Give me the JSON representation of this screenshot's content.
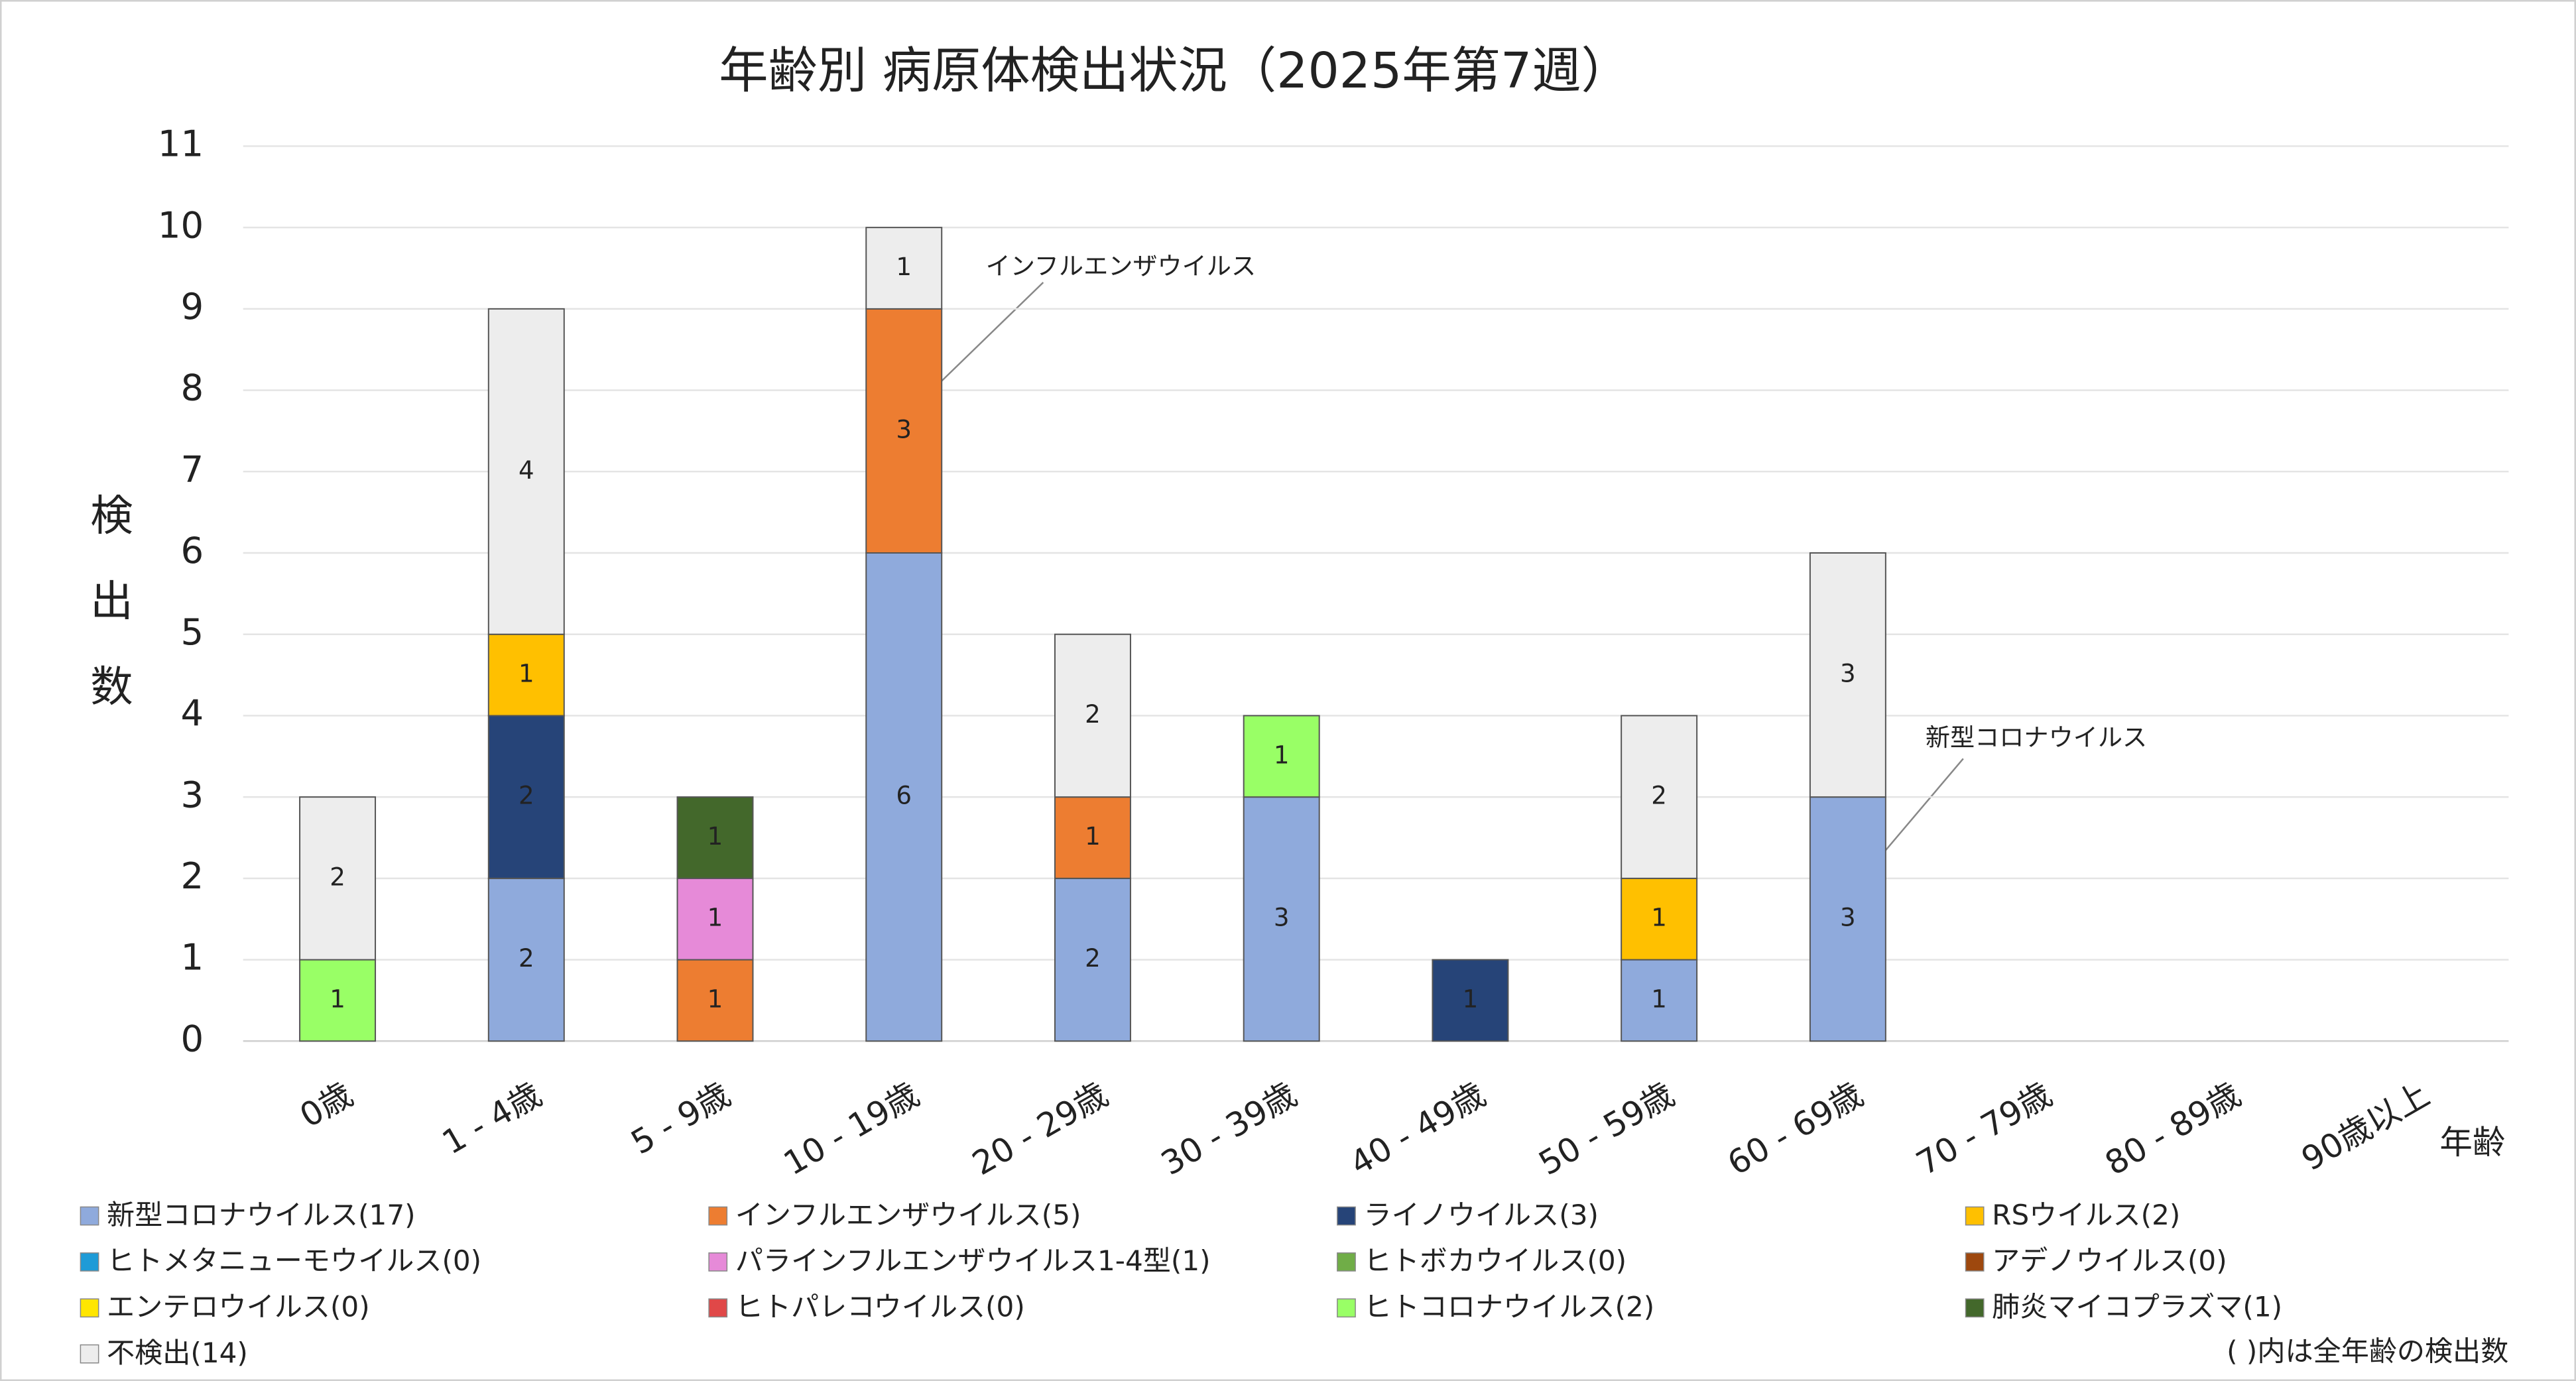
{
  "chart_data": {
    "type": "bar",
    "stacked": true,
    "title": "年齢別 病原体検出状況（2025年第7週）",
    "y_label": "検出数",
    "x_label": "年齢",
    "categories": [
      "0歳",
      "1 - 4歳",
      "5 - 9歳",
      "10 - 19歳",
      "20 - 29歳",
      "30 - 39歳",
      "40 - 49歳",
      "50 - 59歳",
      "60 - 69歳",
      "70 - 79歳",
      "80 - 89歳",
      "90歳以上"
    ],
    "ylim": [
      0,
      11
    ],
    "yticks": [
      0,
      1,
      2,
      3,
      4,
      5,
      6,
      7,
      8,
      9,
      10,
      11
    ],
    "grid": true,
    "series": [
      {
        "name": "新型コロナウイルス(17)",
        "color": "#8faadc",
        "values": [
          0,
          2,
          0,
          6,
          2,
          3,
          0,
          1,
          3,
          0,
          0,
          0
        ]
      },
      {
        "name": "インフルエンザウイルス(5)",
        "color": "#ed7d31",
        "values": [
          0,
          0,
          1,
          3,
          1,
          0,
          0,
          0,
          0,
          0,
          0,
          0
        ]
      },
      {
        "name": "ライノウイルス(3)",
        "color": "#264478",
        "values": [
          0,
          2,
          0,
          0,
          0,
          0,
          1,
          0,
          0,
          0,
          0,
          0
        ]
      },
      {
        "name": "RSウイルス(2)",
        "color": "#ffc000",
        "values": [
          0,
          1,
          0,
          0,
          0,
          0,
          0,
          1,
          0,
          0,
          0,
          0
        ]
      },
      {
        "name": "ヒトメタニューモウイルス(0)",
        "color": "#1e9bd7",
        "values": [
          0,
          0,
          0,
          0,
          0,
          0,
          0,
          0,
          0,
          0,
          0,
          0
        ]
      },
      {
        "name": "パラインフルエンザウイルス1-4型(1)",
        "color": "#e68ad8",
        "values": [
          0,
          0,
          1,
          0,
          0,
          0,
          0,
          0,
          0,
          0,
          0,
          0
        ]
      },
      {
        "name": "ヒトボカウイルス(0)",
        "color": "#70ad47",
        "values": [
          0,
          0,
          0,
          0,
          0,
          0,
          0,
          0,
          0,
          0,
          0,
          0
        ]
      },
      {
        "name": "アデノウイルス(0)",
        "color": "#9e480e",
        "values": [
          0,
          0,
          0,
          0,
          0,
          0,
          0,
          0,
          0,
          0,
          0,
          0
        ]
      },
      {
        "name": "エンテロウイルス(0)",
        "color": "#ffe600",
        "values": [
          0,
          0,
          0,
          0,
          0,
          0,
          0,
          0,
          0,
          0,
          0,
          0
        ]
      },
      {
        "name": "ヒトパレコウイルス(0)",
        "color": "#e04848",
        "values": [
          0,
          0,
          0,
          0,
          0,
          0,
          0,
          0,
          0,
          0,
          0,
          0
        ]
      },
      {
        "name": "ヒトコロナウイルス(2)",
        "color": "#99ff66",
        "values": [
          1,
          0,
          0,
          0,
          0,
          1,
          0,
          0,
          0,
          0,
          0,
          0
        ]
      },
      {
        "name": "肺炎マイコプラズマ(1)",
        "color": "#43682b",
        "values": [
          0,
          0,
          1,
          0,
          0,
          0,
          0,
          0,
          0,
          0,
          0,
          0
        ]
      },
      {
        "name": "不検出(14)",
        "color": "#ededed",
        "values": [
          2,
          4,
          0,
          1,
          2,
          0,
          0,
          2,
          3,
          0,
          0,
          0
        ]
      }
    ],
    "annotations": [
      "インフルエンザウイルス",
      "新型コロナウイルス"
    ],
    "note": "( )内は全年齢の検出数"
  }
}
